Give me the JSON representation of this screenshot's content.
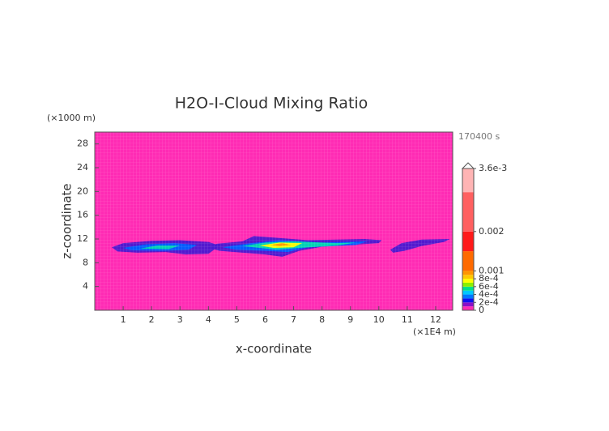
{
  "chart_data": {
    "type": "contour",
    "title": "H2O-I-Cloud Mixing Ratio",
    "xlabel": "x-coordinate",
    "ylabel": "z-coordinate",
    "x_unit": "(×1E4 m)",
    "y_unit": "(×1000 m)",
    "time_label": "170400 s",
    "xlim": [
      0,
      12.6
    ],
    "ylim": [
      0,
      30
    ],
    "xticks": [
      1,
      2,
      3,
      4,
      5,
      6,
      7,
      8,
      9,
      10,
      11,
      12
    ],
    "yticks": [
      4,
      8,
      12,
      16,
      20,
      24,
      28
    ],
    "grid": true,
    "background_color": "#ff2bb4",
    "colorbar": {
      "lim": [
        0,
        0.0036
      ],
      "levels": [
        0,
        0.0001,
        0.0002,
        0.0003,
        0.0004,
        0.0005,
        0.0006,
        0.0007,
        0.0008,
        0.0009,
        0.001,
        0.0015,
        0.002,
        0.003,
        0.0036
      ],
      "colors": [
        "#ff2bb4",
        "#8a10c8",
        "#1010f0",
        "#0078ff",
        "#00c8ff",
        "#00e08a",
        "#8cf000",
        "#ffff00",
        "#ffc800",
        "#ff9600",
        "#ff6a00",
        "#ff1a1a",
        "#ff6060",
        "#ffb4b4"
      ],
      "ticks": [
        0,
        {
          "value": 0.0002,
          "label": "2e-4"
        },
        {
          "value": 0.0004,
          "label": "4e-4"
        },
        {
          "value": 0.0006,
          "label": "6e-4"
        },
        {
          "value": 0.0008,
          "label": "8e-4"
        },
        0.001,
        0.002,
        {
          "value": 0.0036,
          "label": "3.6e-3"
        }
      ]
    },
    "contours": [
      {
        "level": 0.0001,
        "color": "#4a18d0",
        "x": [
          0.6,
          1.0,
          2.0,
          3.0,
          4.0,
          4.4,
          4.0,
          3.2,
          2.5,
          1.5,
          0.8
        ],
        "y": [
          10.6,
          11.3,
          11.7,
          11.8,
          11.5,
          10.9,
          9.5,
          9.4,
          9.8,
          9.7,
          9.9
        ]
      },
      {
        "level": 0.0001,
        "color": "#4a18d0",
        "x": [
          4.0,
          4.3,
          5.2,
          5.6,
          6.4,
          7.5,
          8.5,
          9.5,
          10.1,
          10.0,
          9.0,
          8.0,
          7.2,
          6.6,
          6.0,
          5.2,
          4.4
        ],
        "y": [
          10.5,
          11.2,
          11.6,
          12.5,
          12.2,
          11.8,
          11.9,
          12.0,
          11.8,
          11.3,
          11.0,
          10.7,
          10.0,
          9.0,
          9.4,
          9.7,
          10.0
        ]
      },
      {
        "level": 0.0001,
        "color": "#4a18d0",
        "x": [
          10.4,
          10.8,
          11.5,
          12.5,
          12.3,
          11.5,
          10.9,
          10.5
        ],
        "y": [
          10.2,
          11.3,
          11.9,
          12.0,
          11.5,
          10.8,
          10.0,
          9.7
        ]
      },
      {
        "level": 0.0003,
        "color": "#0060ff",
        "x": [
          1.0,
          1.8,
          2.8,
          3.6,
          3.3,
          2.4,
          1.3
        ],
        "y": [
          10.5,
          11.1,
          11.3,
          11.0,
          10.2,
          10.0,
          10.1
        ]
      },
      {
        "level": 0.0003,
        "color": "#0060ff",
        "x": [
          4.5,
          5.5,
          6.5,
          8.0,
          9.6,
          9.2,
          7.5,
          6.8,
          6.0,
          5.0
        ],
        "y": [
          10.6,
          11.3,
          11.8,
          11.4,
          11.6,
          11.0,
          10.6,
          9.8,
          10.0,
          10.2
        ]
      },
      {
        "level": 0.0005,
        "color": "#00d8b0",
        "x": [
          1.6,
          2.2,
          3.0,
          2.6
        ],
        "y": [
          10.4,
          10.9,
          10.9,
          10.3
        ]
      },
      {
        "level": 0.0005,
        "color": "#00d8b0",
        "x": [
          5.2,
          6.0,
          7.0,
          8.5,
          9.2,
          8.5,
          7.2,
          6.4
        ],
        "y": [
          10.8,
          11.4,
          11.6,
          11.3,
          11.4,
          10.9,
          10.5,
          10.2
        ]
      },
      {
        "level": 0.0007,
        "color": "#ffff00",
        "x": [
          5.8,
          6.5,
          7.3,
          7.0,
          6.3
        ],
        "y": [
          10.9,
          11.4,
          11.3,
          10.6,
          10.5
        ]
      },
      {
        "level": 0.0009,
        "color": "#ff9600",
        "x": [
          6.2,
          6.6,
          6.9,
          6.5
        ],
        "y": [
          11.0,
          11.3,
          11.0,
          10.8
        ]
      }
    ]
  }
}
